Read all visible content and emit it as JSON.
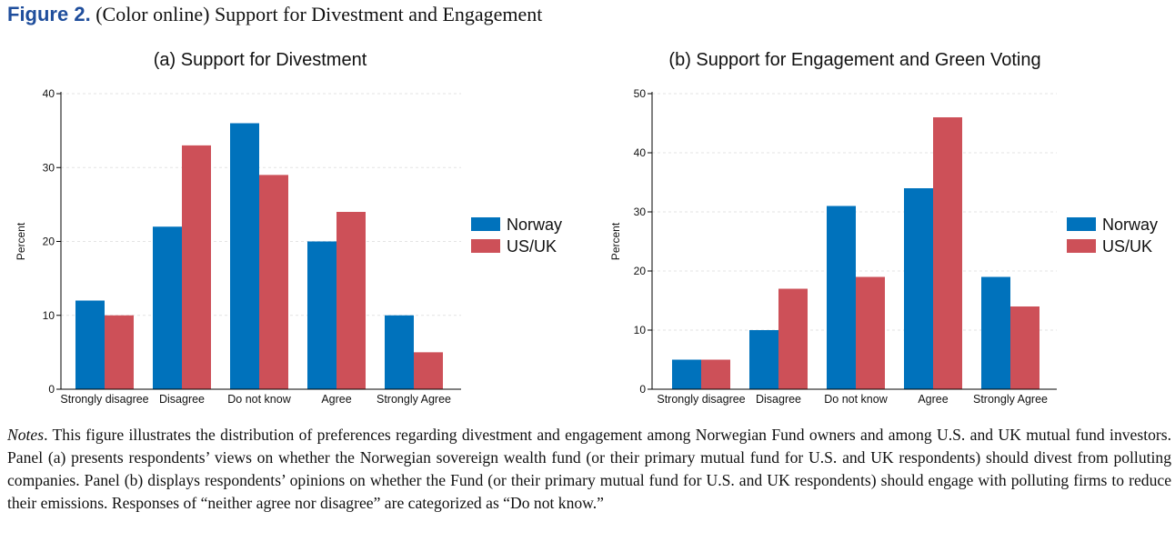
{
  "figure": {
    "label": "Figure 2.",
    "caption": "(Color online) Support for Divestment and Engagement"
  },
  "notes": {
    "label": "Notes",
    "text": ". This figure illustrates the distribution of preferences regarding divestment and engagement among Norwegian Fund owners and among U.S. and UK mutual fund investors. Panel (a) presents respondents’ views on whether the Norwegian sovereign wealth fund (or their primary mutual fund for U.S. and UK respondents) should divest from polluting companies. Panel (b) displays respondents’ opinions on whether the Fund (or their primary mutual fund for U.S. and UK respondents) should engage with polluting firms to reduce their emissions. Responses of “neither agree nor disagree” are categorized as “Do not know.”"
  },
  "chart_data": [
    {
      "type": "bar",
      "title": "(a) Support for Divestment",
      "xlabel": "",
      "ylabel": "Percent",
      "ylim": [
        0,
        40
      ],
      "yticks": [
        0,
        10,
        20,
        30,
        40
      ],
      "grid": true,
      "legend_position": "right",
      "categories": [
        "Strongly disagree",
        "Disagree",
        "Do not know",
        "Agree",
        "Strongly Agree"
      ],
      "series": [
        {
          "name": "Norway",
          "color": "#0072bc",
          "values": [
            12,
            22,
            36,
            20,
            10
          ]
        },
        {
          "name": "US/UK",
          "color": "#cd5058",
          "values": [
            10,
            33,
            29,
            24,
            5
          ]
        }
      ]
    },
    {
      "type": "bar",
      "title": "(b) Support for Engagement and Green Voting",
      "xlabel": "",
      "ylabel": "Percent",
      "ylim": [
        0,
        50
      ],
      "yticks": [
        0,
        10,
        20,
        30,
        40,
        50
      ],
      "grid": true,
      "legend_position": "right",
      "categories": [
        "Strongly disagree",
        "Disagree",
        "Do not know",
        "Agree",
        "Strongly Agree"
      ],
      "series": [
        {
          "name": "Norway",
          "color": "#0072bc",
          "values": [
            5,
            10,
            31,
            34,
            19
          ]
        },
        {
          "name": "US/UK",
          "color": "#cd5058",
          "values": [
            5,
            17,
            19,
            46,
            14
          ]
        }
      ]
    }
  ]
}
